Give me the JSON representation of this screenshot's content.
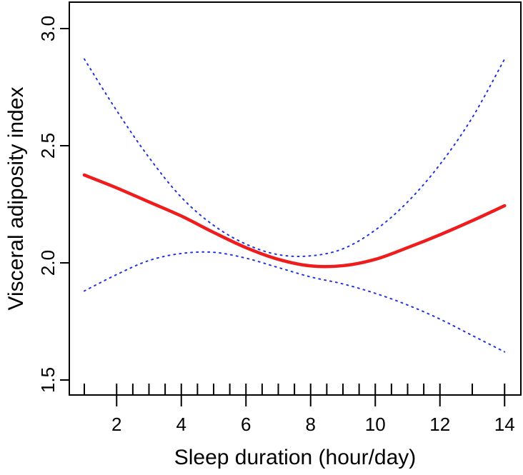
{
  "chart_data": {
    "type": "line",
    "title": "",
    "xlabel": "Sleep duration (hour/day)",
    "ylabel": "Visceral adiposity index",
    "xlim": [
      0.55,
      14.5
    ],
    "ylim": [
      1.45,
      3.1
    ],
    "xticks": [
      2,
      4,
      6,
      8,
      10,
      12,
      14
    ],
    "yticks": [
      "1.5",
      "2.0",
      "2.5",
      "3.0"
    ],
    "rug": [
      1,
      2,
      2.5,
      3,
      3.5,
      4,
      4.5,
      5,
      5.5,
      6,
      6.5,
      7,
      7.5,
      8,
      8.5,
      9,
      9.5,
      10,
      10.5,
      11,
      11.5,
      12,
      13,
      14
    ],
    "grid": false,
    "x": [
      1,
      2,
      3,
      4,
      5,
      6,
      7,
      8,
      9,
      10,
      11,
      12,
      13,
      14
    ],
    "series": [
      {
        "style": "solid",
        "color": "#ee1c1c",
        "values": [
          2.375,
          2.32,
          2.26,
          2.2,
          2.13,
          2.065,
          2.015,
          1.987,
          1.988,
          2.015,
          2.065,
          2.12,
          2.18,
          2.244
        ]
      },
      {
        "style": "dotted",
        "color": "#2233dd",
        "values": [
          2.87,
          2.65,
          2.45,
          2.28,
          2.16,
          2.08,
          2.035,
          2.03,
          2.06,
          2.14,
          2.26,
          2.42,
          2.62,
          2.87
        ]
      },
      {
        "style": "dotted",
        "color": "#2233dd",
        "values": [
          1.88,
          1.95,
          2.01,
          2.04,
          2.045,
          2.02,
          1.98,
          1.94,
          1.91,
          1.87,
          1.82,
          1.76,
          1.69,
          1.62
        ]
      }
    ]
  }
}
